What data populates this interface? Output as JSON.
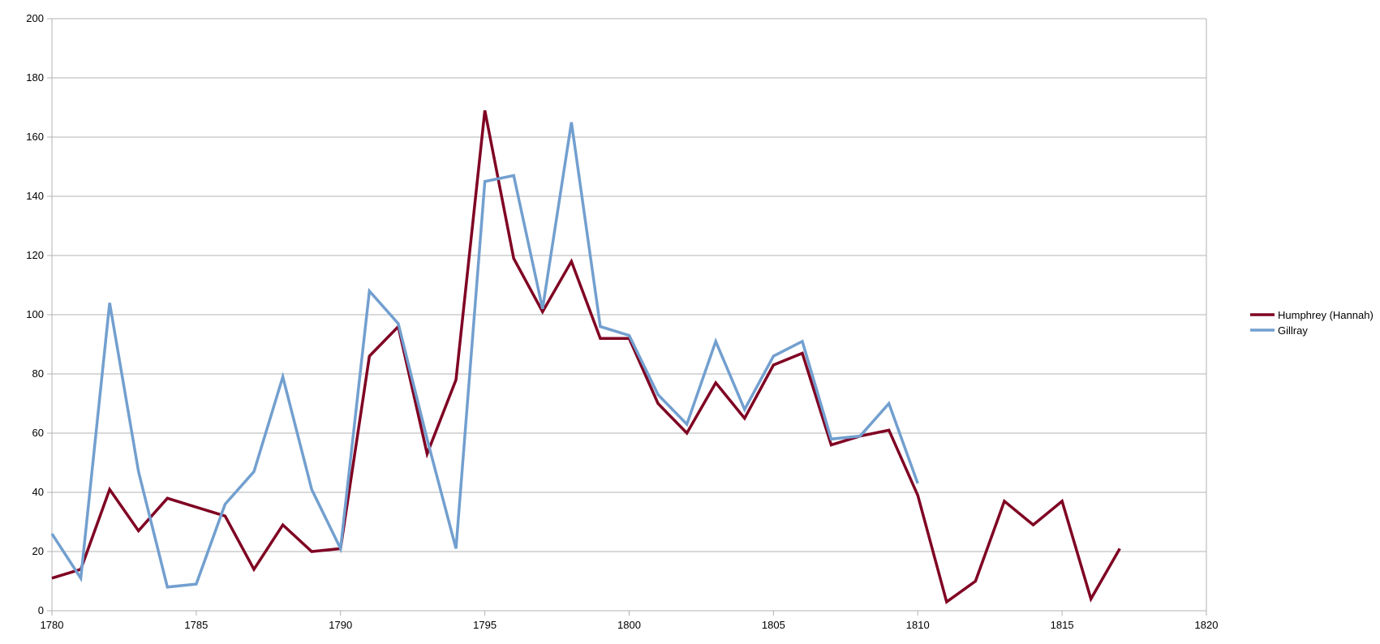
{
  "chart_data": {
    "type": "line",
    "title": "",
    "xlabel": "",
    "ylabel": "",
    "xlim": [
      1780,
      1820
    ],
    "ylim": [
      0,
      200
    ],
    "x_ticks": [
      1780,
      1785,
      1790,
      1795,
      1800,
      1805,
      1810,
      1815,
      1820
    ],
    "y_ticks": [
      0,
      20,
      40,
      60,
      80,
      100,
      120,
      140,
      160,
      180,
      200
    ],
    "grid": "horizontal",
    "legend_position": "right",
    "series": [
      {
        "name": "Humphrey (Hannah)",
        "color": "#7f0022",
        "x": [
          1780,
          1781,
          1782,
          1783,
          1784,
          1786,
          1787,
          1788,
          1789,
          1790,
          1791,
          1792,
          1793,
          1794,
          1795,
          1796,
          1797,
          1798,
          1799,
          1800,
          1801,
          1802,
          1803,
          1804,
          1805,
          1806,
          1807,
          1808,
          1809,
          1810,
          1811,
          1812,
          1813,
          1814,
          1815,
          1816,
          1817
        ],
        "values": [
          11,
          14,
          41,
          27,
          38,
          32,
          14,
          29,
          20,
          21,
          86,
          96,
          53,
          78,
          169,
          119,
          101,
          118,
          92,
          92,
          70,
          60,
          77,
          65,
          83,
          87,
          56,
          59,
          61,
          39,
          3,
          10,
          37,
          29,
          37,
          4,
          21
        ]
      },
      {
        "name": "Gillray",
        "color": "#729fcf",
        "x": [
          1780,
          1781,
          1782,
          1783,
          1784,
          1785,
          1786,
          1787,
          1788,
          1789,
          1790,
          1791,
          1792,
          1793,
          1794,
          1795,
          1796,
          1797,
          1798,
          1799,
          1800,
          1801,
          1802,
          1803,
          1804,
          1805,
          1806,
          1807,
          1808,
          1809,
          1810
        ],
        "values": [
          26,
          11,
          104,
          47,
          8,
          9,
          36,
          47,
          79,
          41,
          21,
          108,
          97,
          58,
          21,
          145,
          147,
          102,
          165,
          96,
          93,
          73,
          63,
          91,
          68,
          86,
          91,
          58,
          59,
          70,
          43
        ]
      }
    ]
  }
}
